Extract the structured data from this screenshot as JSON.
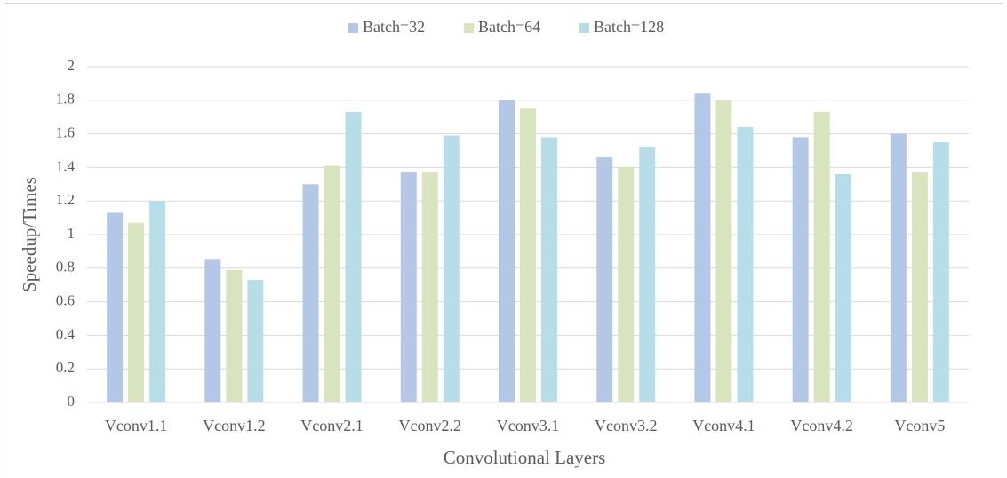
{
  "chart_data": {
    "type": "bar",
    "xlabel": "Convolutional Layers",
    "ylabel": "Speedup/Times",
    "categories": [
      "Vconv1.1",
      "Vconv1.2",
      "Vconv2.1",
      "Vconv2.2",
      "Vconv3.1",
      "Vconv3.2",
      "Vconv4.1",
      "Vconv4.2",
      "Vconv5"
    ],
    "series": [
      {
        "name": "Batch=32",
        "color": "#b4c7e7",
        "values": [
          1.13,
          0.85,
          1.3,
          1.37,
          1.8,
          1.46,
          1.84,
          1.58,
          1.6
        ]
      },
      {
        "name": "Batch=64",
        "color": "#d7e4bd",
        "values": [
          1.07,
          0.79,
          1.41,
          1.37,
          1.75,
          1.4,
          1.8,
          1.73,
          1.37
        ]
      },
      {
        "name": "Batch=128",
        "color": "#b7dee8",
        "values": [
          1.2,
          0.73,
          1.73,
          1.59,
          1.58,
          1.52,
          1.64,
          1.36,
          1.55
        ]
      }
    ],
    "ylim": [
      0,
      2
    ],
    "yticks": [
      0,
      0.2,
      0.4,
      0.6,
      0.8,
      1,
      1.2,
      1.4,
      1.6,
      1.8,
      2
    ],
    "grid": true,
    "legend": "top"
  }
}
